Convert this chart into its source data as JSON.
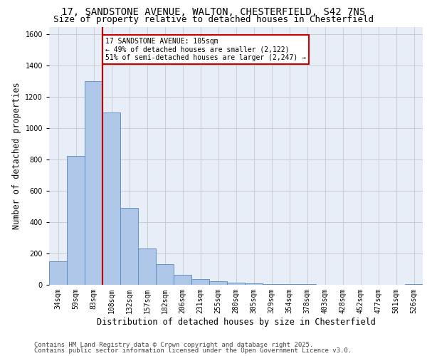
{
  "title_line1": "17, SANDSTONE AVENUE, WALTON, CHESTERFIELD, S42 7NS",
  "title_line2": "Size of property relative to detached houses in Chesterfield",
  "xlabel": "Distribution of detached houses by size in Chesterfield",
  "ylabel": "Number of detached properties",
  "categories": [
    "34sqm",
    "59sqm",
    "83sqm",
    "108sqm",
    "132sqm",
    "157sqm",
    "182sqm",
    "206sqm",
    "231sqm",
    "255sqm",
    "280sqm",
    "305sqm",
    "329sqm",
    "354sqm",
    "378sqm",
    "403sqm",
    "428sqm",
    "452sqm",
    "477sqm",
    "501sqm",
    "526sqm"
  ],
  "values": [
    150,
    825,
    1300,
    1100,
    490,
    230,
    130,
    65,
    38,
    25,
    15,
    10,
    5,
    4,
    3,
    2,
    1,
    1,
    1,
    1,
    5
  ],
  "bar_color": "#aec6e8",
  "bar_edge_color": "#5588bb",
  "grid_color": "#cccccc",
  "background_color": "#e8eef8",
  "vline_x_index": 3,
  "vline_color": "#cc0000",
  "annotation_text": "17 SANDSTONE AVENUE: 105sqm\n← 49% of detached houses are smaller (2,122)\n51% of semi-detached houses are larger (2,247) →",
  "annotation_box_color": "#cc0000",
  "ylim": [
    0,
    1650
  ],
  "yticks": [
    0,
    200,
    400,
    600,
    800,
    1000,
    1200,
    1400,
    1600
  ],
  "footer_line1": "Contains HM Land Registry data © Crown copyright and database right 2025.",
  "footer_line2": "Contains public sector information licensed under the Open Government Licence v3.0.",
  "title_fontsize": 10,
  "subtitle_fontsize": 9,
  "axis_label_fontsize": 8.5,
  "tick_fontsize": 7,
  "footer_fontsize": 6.5,
  "annot_fontsize": 7
}
